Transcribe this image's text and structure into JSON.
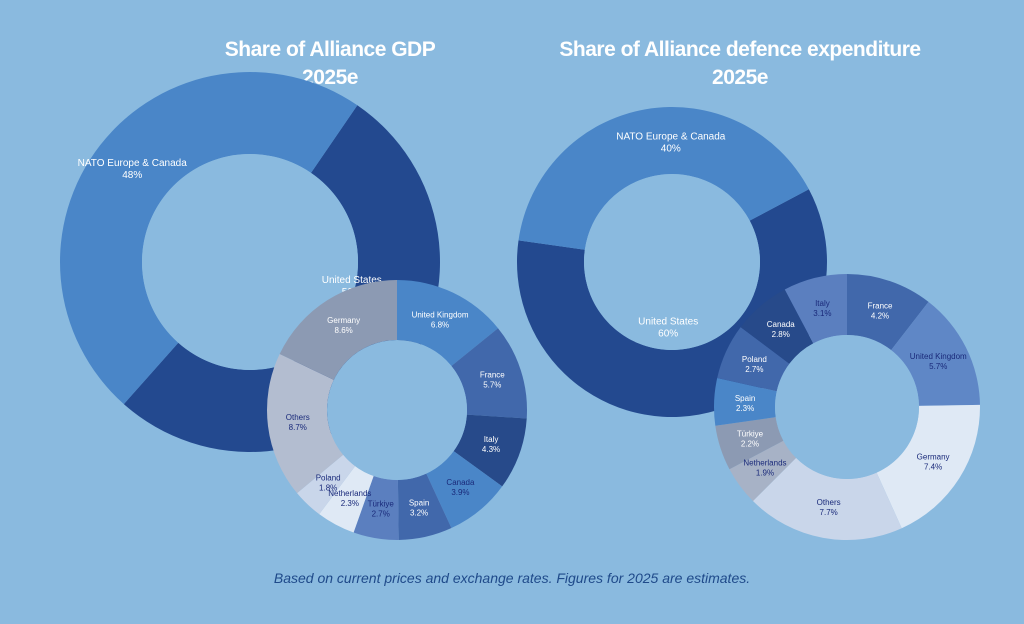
{
  "charts": [
    {
      "title_line1": "Share of Alliance GDP",
      "title_line2": "2025e"
    },
    {
      "title_line1": "Share of Alliance defence expenditure",
      "title_line2": "2025e"
    }
  ],
  "footnote": "Based on current prices and exchange rates. Figures for 2025 are estimates.",
  "chart_data": [
    {
      "type": "pie",
      "variant": "donut",
      "title": "Share of Alliance GDP 2025e",
      "slices": [
        {
          "label": "United States",
          "value": 52,
          "value_label": "52%",
          "color": "#23498f"
        },
        {
          "label": "NATO Europe & Canada",
          "value": 48,
          "value_label": "48%",
          "color": "#4a86c8"
        }
      ]
    },
    {
      "type": "pie",
      "variant": "donut",
      "title": "Share of Alliance GDP 2025e",
      "slices": [
        {
          "label": "United Kingdom",
          "value": 6.8,
          "value_label": "6.8%",
          "color": "#4a86c8"
        },
        {
          "label": "France",
          "value": 5.7,
          "value_label": "5.7%",
          "color": "#4168ab"
        },
        {
          "label": "Italy",
          "value": 4.3,
          "value_label": "4.3%",
          "color": "#274a8a"
        },
        {
          "label": "Canada",
          "value": 3.9,
          "value_label": "3.9%",
          "color": "#4a86c8"
        },
        {
          "label": "Spain",
          "value": 3.2,
          "value_label": "3.2%",
          "color": "#4168ab"
        },
        {
          "label": "Türkiye",
          "value": 2.7,
          "value_label": "2.7%",
          "color": "#5b7fbf"
        },
        {
          "label": "Netherlands",
          "value": 2.3,
          "value_label": "2.3%",
          "color": "#dfe9f5"
        },
        {
          "label": "Poland",
          "value": 1.8,
          "value_label": "1.8%",
          "color": "#c9d6ea"
        },
        {
          "label": "Others",
          "value": 8.7,
          "value_label": "8.7%",
          "color": "#b3bdd0"
        },
        {
          "label": "Germany",
          "value": 8.6,
          "value_label": "8.6%",
          "color": "#8c9ab3"
        }
      ]
    },
    {
      "type": "pie",
      "variant": "donut",
      "title": "Share of Alliance defence expenditure 2025e",
      "slices": [
        {
          "label": "United States",
          "value": 60,
          "value_label": "60%",
          "color": "#23498f"
        },
        {
          "label": "NATO Europe & Canada",
          "value": 40,
          "value_label": "40%",
          "color": "#4a86c8"
        }
      ]
    },
    {
      "type": "pie",
      "variant": "donut",
      "title": "Share of Alliance defence expenditure 2025e",
      "slices": [
        {
          "label": "France",
          "value": 4.2,
          "value_label": "4.2%",
          "color": "#4168ab"
        },
        {
          "label": "United Kingdom",
          "value": 5.7,
          "value_label": "5.7%",
          "color": "#5f87c6"
        },
        {
          "label": "Germany",
          "value": 7.4,
          "value_label": "7.4%",
          "color": "#dfe9f5"
        },
        {
          "label": "Others",
          "value": 7.7,
          "value_label": "7.7%",
          "color": "#c9d6ea"
        },
        {
          "label": "Netherlands",
          "value": 1.9,
          "value_label": "1.9%",
          "color": "#a7b2c6"
        },
        {
          "label": "Türkiye",
          "value": 2.2,
          "value_label": "2.2%",
          "color": "#8c9ab3"
        },
        {
          "label": "Spain",
          "value": 2.3,
          "value_label": "2.3%",
          "color": "#4a86c8"
        },
        {
          "label": "Poland",
          "value": 2.7,
          "value_label": "2.7%",
          "color": "#4168ab"
        },
        {
          "label": "Canada",
          "value": 2.8,
          "value_label": "2.8%",
          "color": "#274a8a"
        },
        {
          "label": "Italy",
          "value": 3.1,
          "value_label": "3.1%",
          "color": "#5b7fbf"
        }
      ]
    }
  ]
}
